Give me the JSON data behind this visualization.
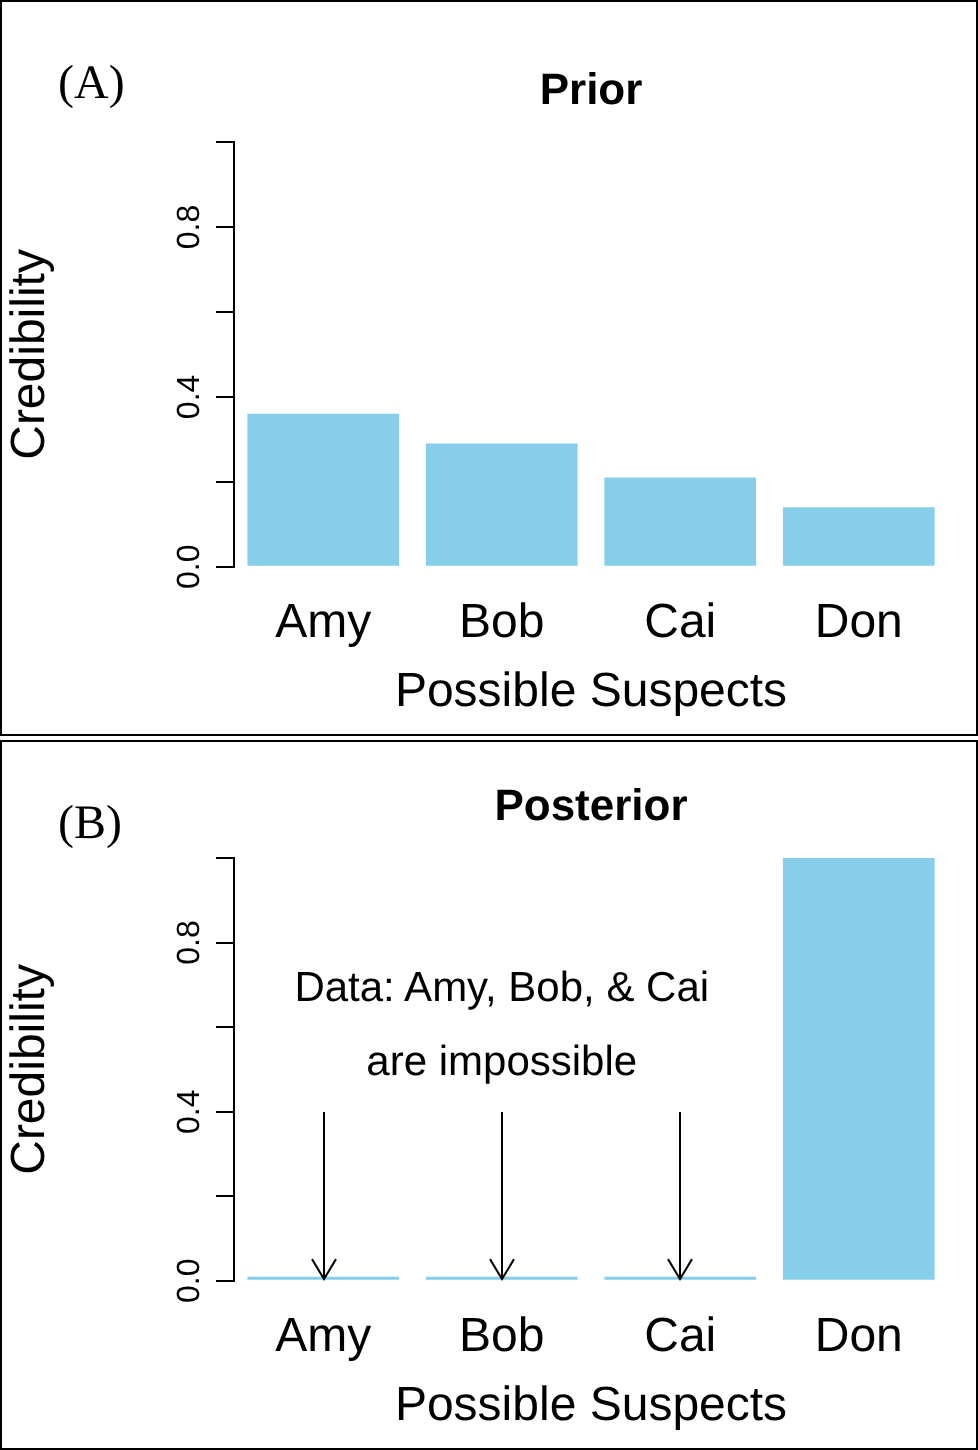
{
  "chart_data": [
    {
      "type": "bar",
      "title": "Prior",
      "xlabel": "Possible Suspects",
      "ylabel": "Credibility",
      "categories": [
        "Amy",
        "Bob",
        "Cai",
        "Don"
      ],
      "values": [
        0.36,
        0.29,
        0.21,
        0.14
      ],
      "color": "#87ceeb",
      "ylim": [
        0,
        1
      ],
      "yticks": [
        {
          "value": 0,
          "label": "0.0"
        },
        {
          "value": 0.2,
          "label": null
        },
        {
          "value": 0.4,
          "label": "0.4"
        },
        {
          "value": 0.6,
          "label": null
        },
        {
          "value": 0.8,
          "label": "0.8"
        },
        {
          "value": 1,
          "label": null
        }
      ],
      "annotations": [
        "(A)"
      ]
    },
    {
      "type": "bar",
      "title": "Posterior",
      "xlabel": "Possible Suspects",
      "ylabel": "Credibility",
      "categories": [
        "Amy",
        "Bob",
        "Cai",
        "Don"
      ],
      "values": [
        0,
        0,
        0,
        1
      ],
      "color": "#87ceeb",
      "ylim": [
        0,
        1
      ],
      "yticks": [
        {
          "value": 0,
          "label": "0.0"
        },
        {
          "value": 0.2,
          "label": null
        },
        {
          "value": 0.4,
          "label": "0.4"
        },
        {
          "value": 0.6,
          "label": null
        },
        {
          "value": 0.8,
          "label": "0.8"
        },
        {
          "value": 1,
          "label": null
        }
      ],
      "annotations": [
        "(B)",
        {
          "text": "Data: Amy, Bob, & Cai are impossible",
          "x": "Bob",
          "y": 0
        }
      ]
    }
  ]
}
